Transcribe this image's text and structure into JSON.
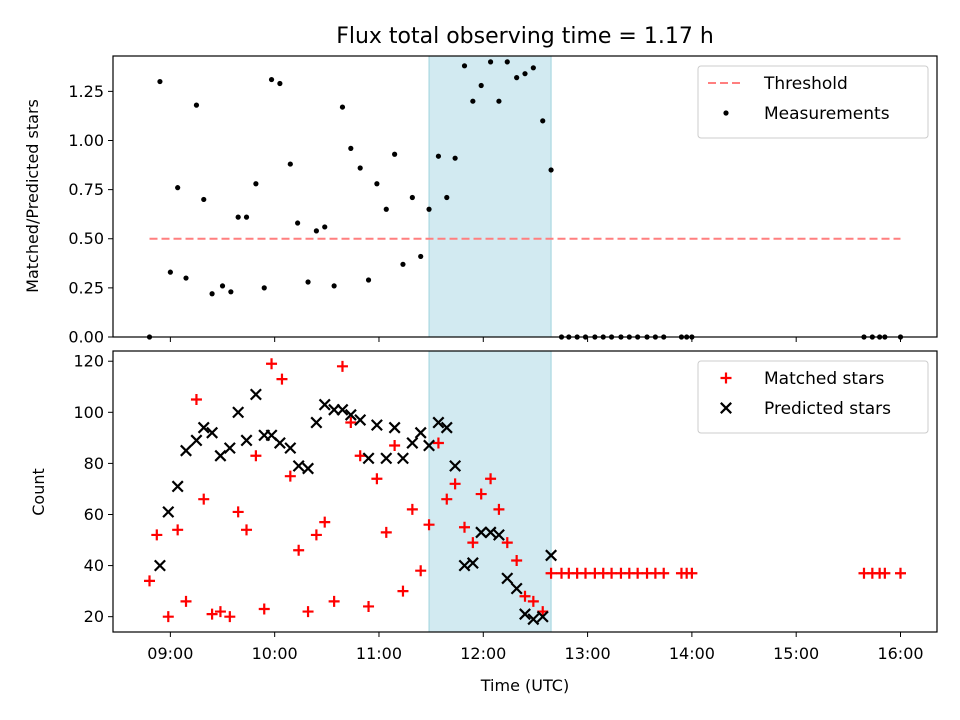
{
  "chart_data": [
    {
      "type": "scatter",
      "title": "Flux total observing time = 1.17 h",
      "xlabel": "",
      "ylabel": "Matched/Predicted stars",
      "xlim": [
        8.45,
        16.35
      ],
      "ylim": [
        0,
        1.43
      ],
      "yticks": [
        0,
        0.25,
        0.5,
        0.75,
        1.0,
        1.25
      ],
      "ytick_labels": [
        "0.00",
        "0.25",
        "0.50",
        "0.75",
        "1.00",
        "1.25"
      ],
      "xticks": [
        9,
        10,
        11,
        12,
        13,
        14,
        15,
        16
      ],
      "highlight_span": [
        11.48,
        12.65
      ],
      "legend_position": "top-right",
      "threshold": {
        "name": "Threshold",
        "value": 0.5,
        "x_range": [
          8.8,
          16.0
        ],
        "color": "#ff7f7f"
      },
      "series": [
        {
          "name": "Measurements",
          "marker": "dot",
          "color": "#000000",
          "x": [
            8.8,
            8.9,
            9.0,
            9.07,
            9.15,
            9.25,
            9.32,
            9.4,
            9.5,
            9.58,
            9.65,
            9.73,
            9.82,
            9.9,
            9.97,
            10.05,
            10.15,
            10.22,
            10.32,
            10.4,
            10.48,
            10.57,
            10.65,
            10.73,
            10.82,
            10.9,
            10.98,
            11.07,
            11.15,
            11.23,
            11.32,
            11.4,
            11.48,
            11.57,
            11.65,
            11.73,
            11.82,
            11.9,
            11.98,
            12.07,
            12.15,
            12.23,
            12.32,
            12.4,
            12.48,
            12.57,
            12.65,
            12.75,
            12.82,
            12.9,
            12.98,
            13.07,
            13.15,
            13.23,
            13.32,
            13.4,
            13.48,
            13.57,
            13.65,
            13.73,
            13.9,
            13.95,
            14.0,
            15.65,
            15.73,
            15.8,
            15.85,
            16.0
          ],
          "y": [
            0.0,
            1.3,
            0.33,
            0.76,
            0.3,
            1.18,
            0.7,
            0.22,
            0.26,
            0.23,
            0.61,
            0.61,
            0.78,
            0.25,
            1.31,
            1.29,
            0.88,
            0.58,
            0.28,
            0.54,
            0.56,
            0.26,
            1.17,
            0.96,
            0.86,
            0.29,
            0.78,
            0.65,
            0.93,
            0.37,
            0.71,
            0.41,
            0.65,
            0.92,
            0.71,
            0.91,
            1.38,
            1.2,
            1.28,
            1.4,
            1.2,
            1.4,
            1.32,
            1.34,
            1.37,
            1.1,
            0.85,
            0.0,
            0.0,
            0.0,
            0.0,
            0.0,
            0.0,
            0.0,
            0.0,
            0.0,
            0.0,
            0.0,
            0.0,
            0.0,
            0.0,
            0.0,
            0.0,
            0.0,
            0.0,
            0.0,
            0.0,
            0.0
          ]
        }
      ]
    },
    {
      "type": "scatter",
      "title": "",
      "xlabel": "Time (UTC)",
      "ylabel": "Count",
      "xlim": [
        8.45,
        16.35
      ],
      "ylim": [
        14,
        124
      ],
      "yticks": [
        20,
        40,
        60,
        80,
        100,
        120
      ],
      "ytick_labels": [
        "20",
        "40",
        "60",
        "80",
        "100",
        "120"
      ],
      "xticks": [
        9,
        10,
        11,
        12,
        13,
        14,
        15,
        16
      ],
      "xtick_labels": [
        "09:00",
        "10:00",
        "11:00",
        "12:00",
        "13:00",
        "14:00",
        "15:00",
        "16:00"
      ],
      "highlight_span": [
        11.48,
        12.65
      ],
      "legend_position": "top-right",
      "series": [
        {
          "name": "Matched stars",
          "marker": "plus",
          "color": "#ff0000",
          "x": [
            8.8,
            8.87,
            8.98,
            9.07,
            9.15,
            9.25,
            9.32,
            9.4,
            9.48,
            9.57,
            9.65,
            9.73,
            9.82,
            9.9,
            9.97,
            10.07,
            10.15,
            10.23,
            10.32,
            10.4,
            10.48,
            10.57,
            10.65,
            10.73,
            10.82,
            10.9,
            10.98,
            11.07,
            11.15,
            11.23,
            11.32,
            11.4,
            11.48,
            11.57,
            11.65,
            11.73,
            11.82,
            11.9,
            11.98,
            12.07,
            12.15,
            12.23,
            12.32,
            12.4,
            12.48,
            12.57,
            12.65,
            12.75,
            12.82,
            12.9,
            12.98,
            13.07,
            13.15,
            13.23,
            13.32,
            13.4,
            13.48,
            13.57,
            13.65,
            13.73,
            13.9,
            13.95,
            14.0,
            15.65,
            15.73,
            15.8,
            15.85,
            16.0
          ],
          "y": [
            34,
            52,
            20,
            54,
            26,
            105,
            66,
            21,
            22,
            20,
            61,
            54,
            83,
            23,
            119,
            113,
            75,
            46,
            22,
            52,
            57,
            26,
            118,
            96,
            83,
            24,
            74,
            53,
            87,
            30,
            62,
            38,
            56,
            88,
            66,
            72,
            55,
            49,
            68,
            74,
            62,
            49,
            42,
            28,
            26,
            22,
            37,
            37,
            37,
            37,
            37,
            37,
            37,
            37,
            37,
            37,
            37,
            37,
            37,
            37,
            37,
            37,
            37,
            37,
            37,
            37,
            37,
            37
          ]
        },
        {
          "name": "Predicted stars",
          "marker": "x",
          "color": "#000000",
          "x": [
            8.9,
            8.98,
            9.07,
            9.15,
            9.25,
            9.32,
            9.4,
            9.48,
            9.57,
            9.65,
            9.73,
            9.82,
            9.9,
            9.97,
            10.05,
            10.15,
            10.23,
            10.32,
            10.4,
            10.48,
            10.57,
            10.65,
            10.73,
            10.82,
            10.9,
            10.98,
            11.07,
            11.15,
            11.23,
            11.32,
            11.4,
            11.48,
            11.57,
            11.65,
            11.73,
            11.82,
            11.9,
            11.98,
            12.07,
            12.15,
            12.23,
            12.32,
            12.4,
            12.48,
            12.57,
            12.65
          ],
          "y": [
            40,
            61,
            71,
            85,
            89,
            94,
            92,
            83,
            86,
            100,
            89,
            107,
            91,
            91,
            88,
            86,
            79,
            78,
            96,
            103,
            101,
            101,
            99,
            97,
            82,
            95,
            82,
            94,
            82,
            88,
            92,
            87,
            96,
            94,
            79,
            40,
            41,
            53,
            53,
            52,
            35,
            31,
            21,
            19,
            20,
            44
          ]
        }
      ]
    }
  ]
}
